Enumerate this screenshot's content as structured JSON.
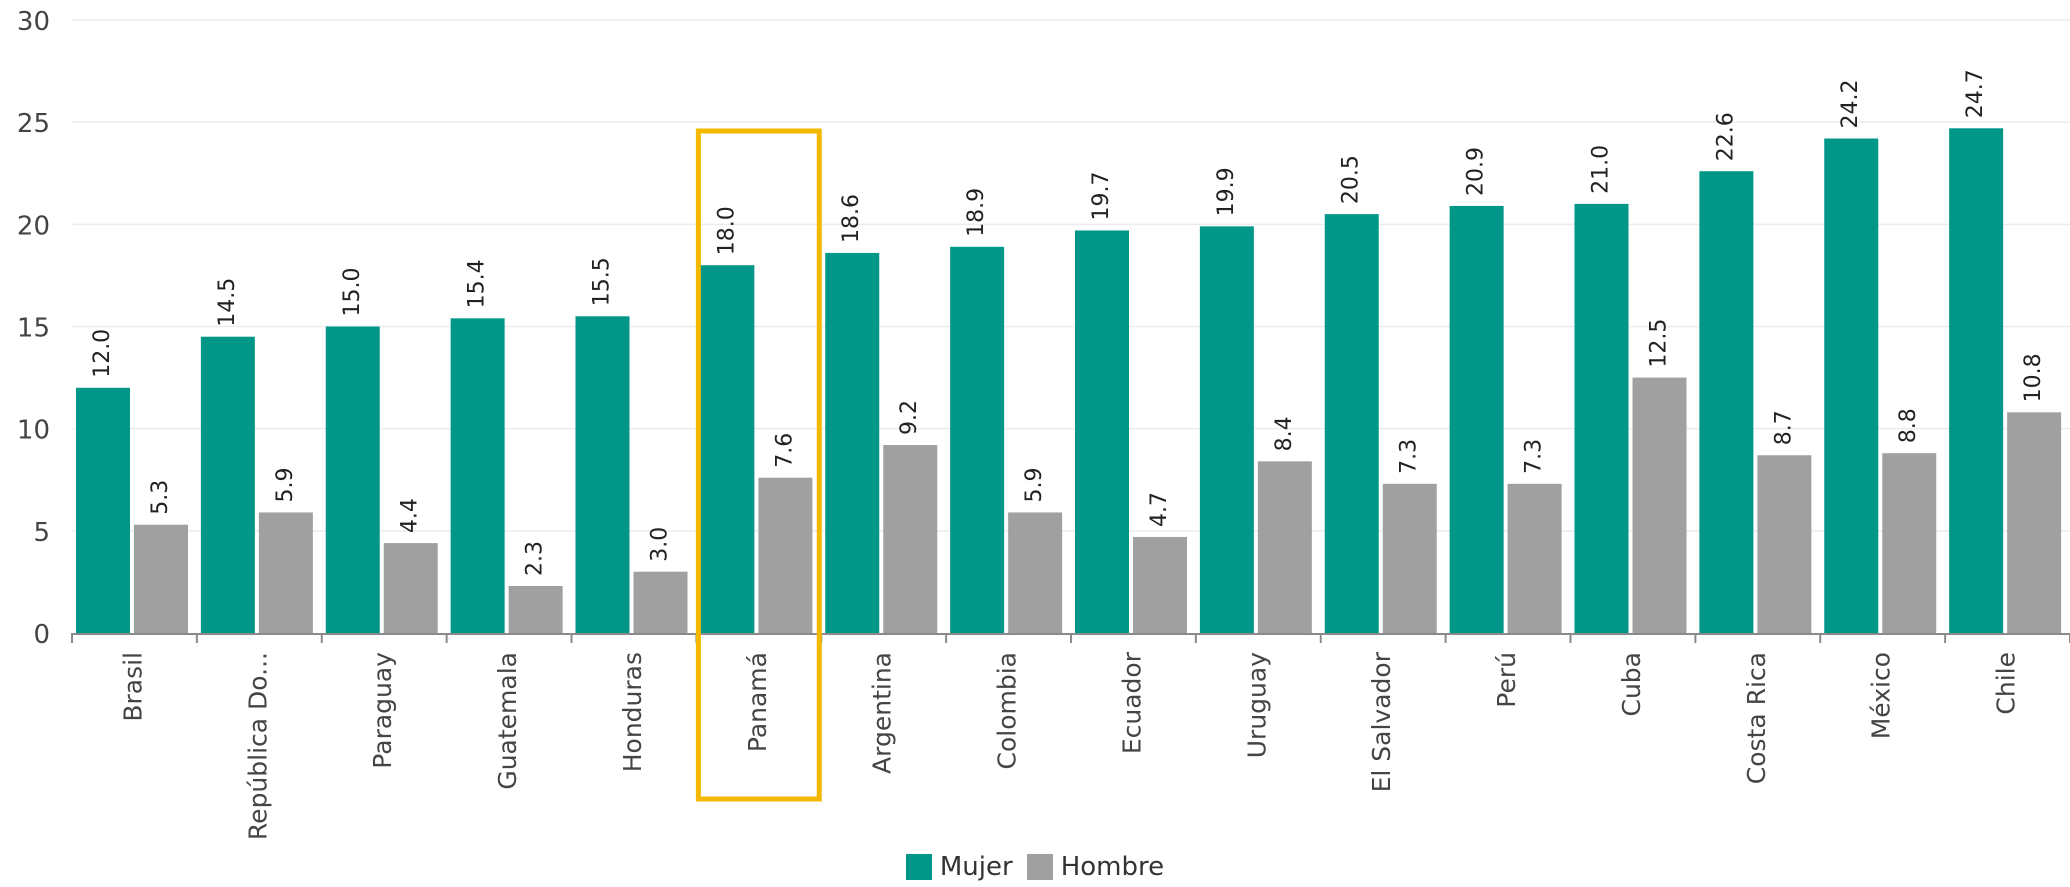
{
  "chart_data": {
    "type": "bar",
    "categories": [
      "Brasil",
      "República Do...",
      "Paraguay",
      "Guatemala",
      "Honduras",
      "Panamá",
      "Argentina",
      "Colombia",
      "Ecuador",
      "Uruguay",
      "El Salvador",
      "Perú",
      "Cuba",
      "Costa Rica",
      "México",
      "Chile"
    ],
    "series": [
      {
        "name": "Mujer",
        "color": "#009688",
        "values": [
          12.0,
          14.5,
          15.0,
          15.4,
          15.5,
          18.0,
          18.6,
          18.9,
          19.7,
          19.9,
          20.5,
          20.9,
          21.0,
          22.6,
          24.2,
          24.7
        ]
      },
      {
        "name": "Hombre",
        "color": "#a0a0a0",
        "values": [
          5.3,
          5.9,
          4.4,
          2.3,
          3.0,
          7.6,
          9.2,
          5.9,
          4.7,
          8.4,
          7.3,
          7.3,
          12.5,
          8.7,
          8.8,
          10.8
        ]
      }
    ],
    "ylim": [
      0,
      30
    ],
    "yticks": [
      0,
      5,
      10,
      15,
      20,
      25,
      30
    ],
    "grid": true,
    "legend_position": "bottom-center",
    "highlight_category": "Panamá",
    "highlight_color": "#f5b800"
  },
  "legend": {
    "mujer_label": "Mujer",
    "hombre_label": "Hombre"
  }
}
